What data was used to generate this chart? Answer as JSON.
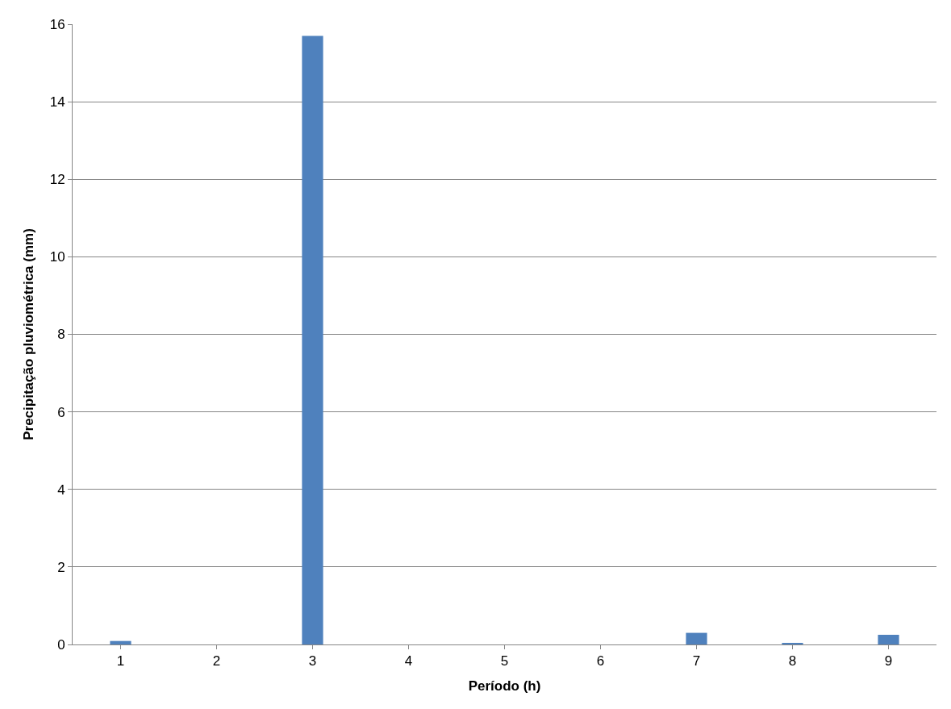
{
  "chart_data": {
    "type": "bar",
    "xlabel": "Período (h)",
    "ylabel": "Precipitação pluviométrica (mm)",
    "categories": [
      "1",
      "2",
      "3",
      "4",
      "5",
      "6",
      "7",
      "8",
      "9"
    ],
    "values": [
      0.09,
      0,
      15.7,
      0,
      0,
      0,
      0.3,
      0.03,
      0.25
    ],
    "color": "#4f81bd",
    "ylim": [
      0,
      16
    ],
    "yticks": [
      0,
      2,
      4,
      6,
      8,
      10,
      12,
      14,
      16
    ],
    "grid": "y",
    "legend": false
  }
}
